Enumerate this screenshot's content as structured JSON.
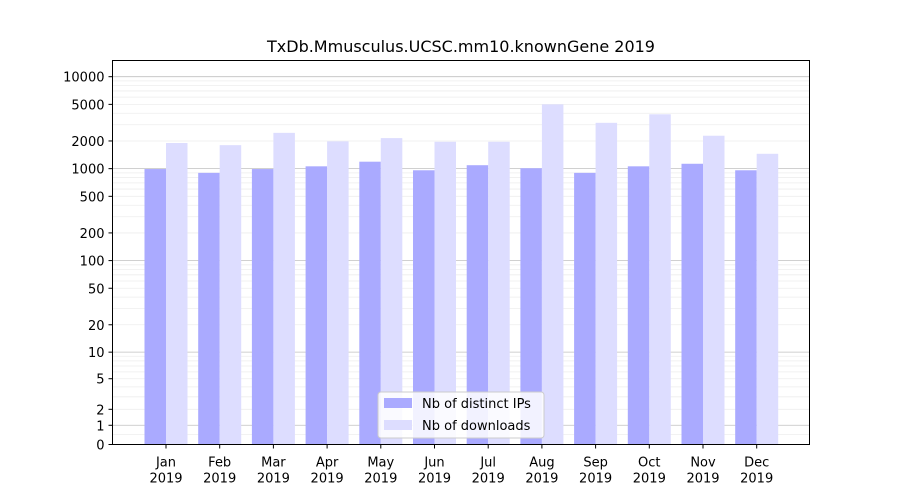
{
  "chart_data": {
    "type": "bar",
    "title": "TxDb.Mmusculus.UCSC.mm10.knownGene 2019",
    "xlabel": "",
    "ylabel": "",
    "y_scale": "symlog",
    "ylim": [
      0,
      15000
    ],
    "y_ticks": [
      0,
      1,
      2,
      5,
      10,
      20,
      50,
      100,
      200,
      500,
      1000,
      2000,
      5000,
      10000
    ],
    "y_tick_labels": [
      "0",
      "1",
      "2",
      "5",
      "10",
      "20",
      "50",
      "100",
      "200",
      "500",
      "1000",
      "2000",
      "5000",
      "10000"
    ],
    "categories": [
      "Jan\n2019",
      "Feb\n2019",
      "Mar\n2019",
      "Apr\n2019",
      "May\n2019",
      "Jun\n2019",
      "Jul\n2019",
      "Aug\n2019",
      "Sep\n2019",
      "Oct\n2019",
      "Nov\n2019",
      "Dec\n2019"
    ],
    "series": [
      {
        "name": "Nb of distinct IPs",
        "color": "#aaaaff",
        "values": [
          990,
          900,
          990,
          1060,
          1190,
          960,
          1090,
          1010,
          900,
          1060,
          1130,
          960
        ]
      },
      {
        "name": "Nb of downloads",
        "color": "#ddddff",
        "values": [
          1900,
          1800,
          2450,
          1980,
          2150,
          1960,
          1960,
          5000,
          3150,
          3900,
          2280,
          1450
        ]
      }
    ],
    "legend": {
      "position": "bottom-center"
    },
    "grid": true
  }
}
